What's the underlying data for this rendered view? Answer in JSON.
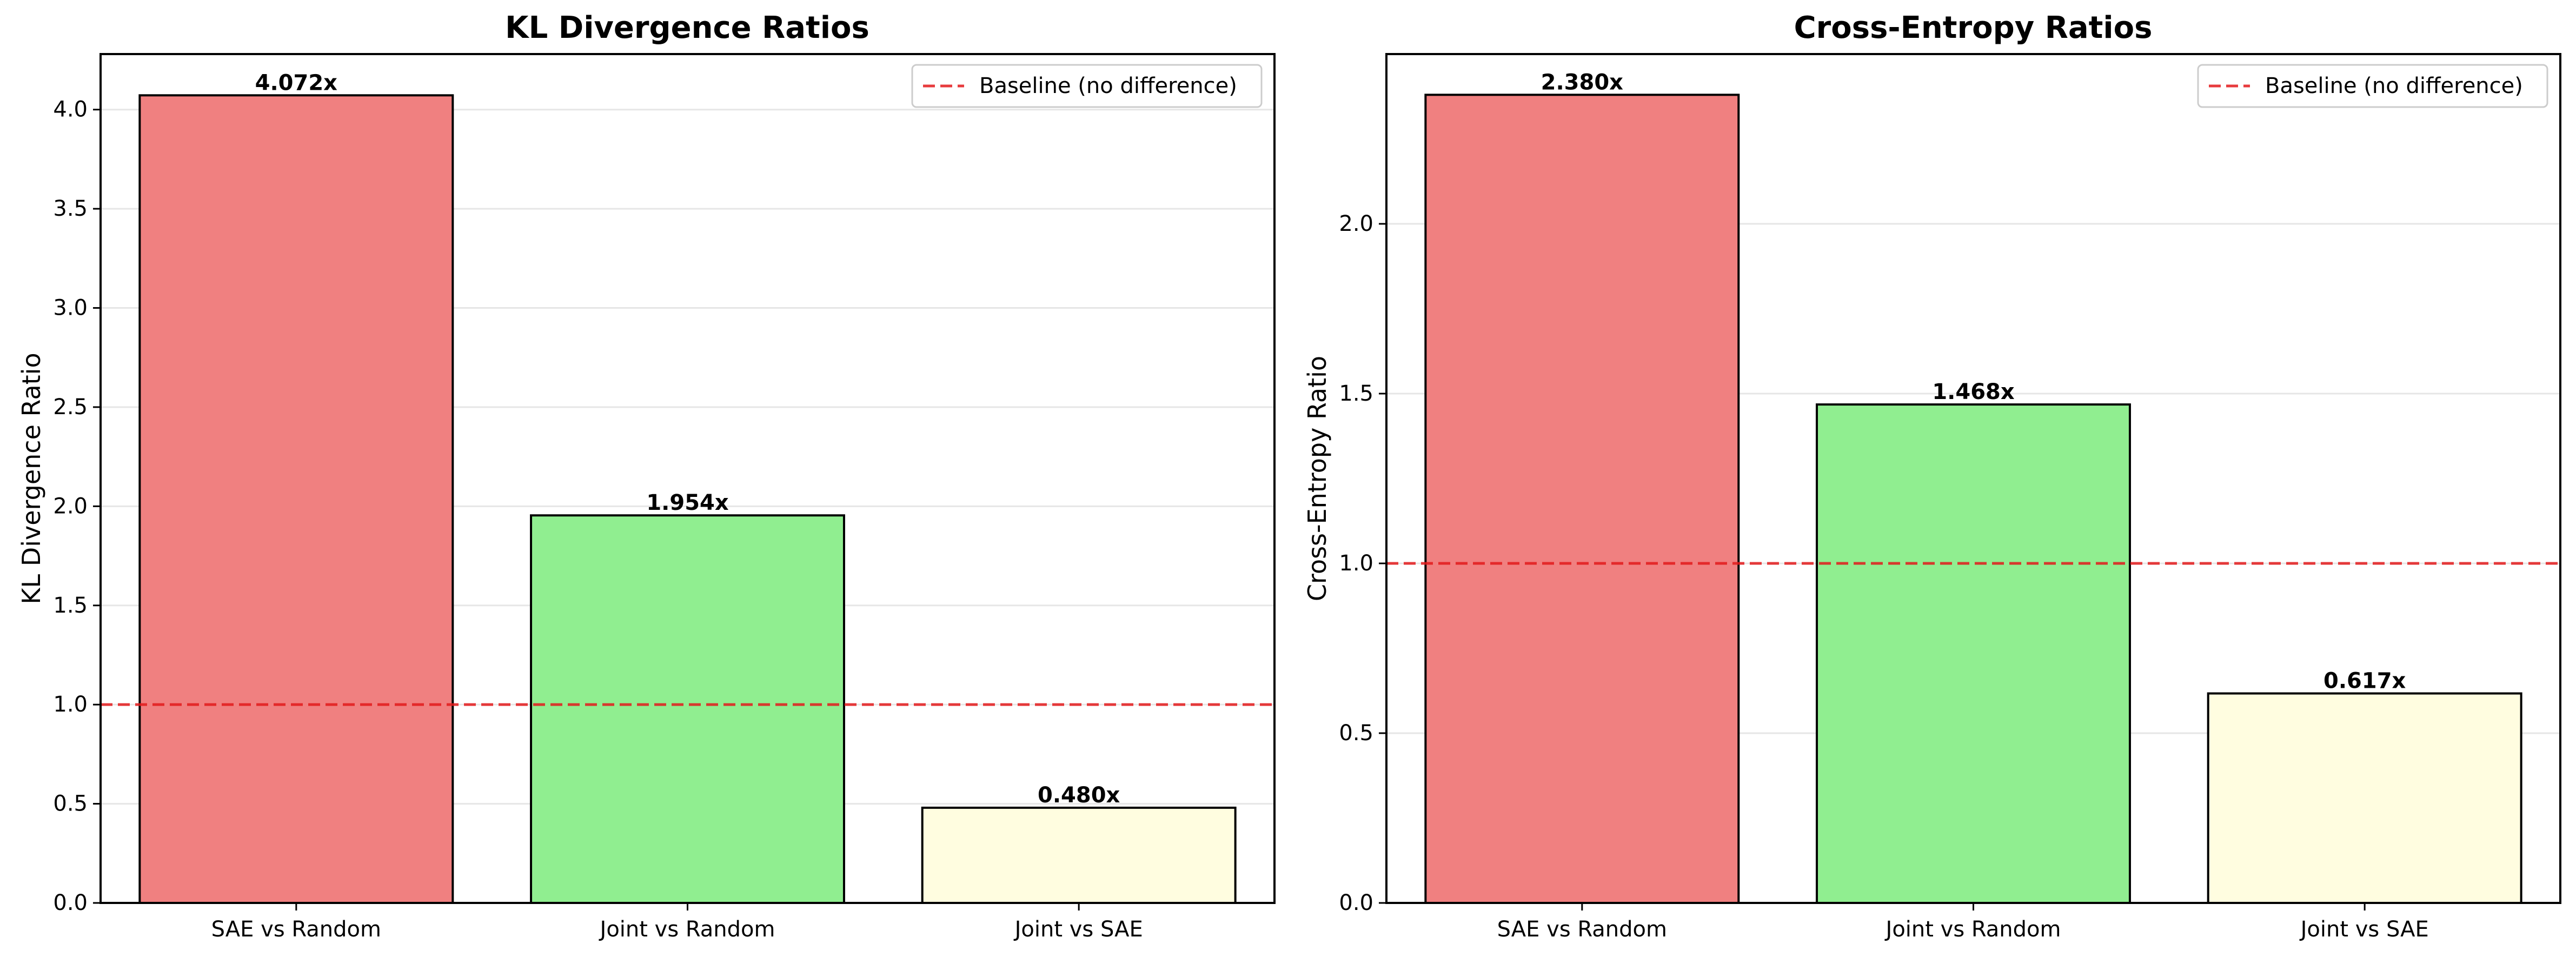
{
  "chart_data": [
    {
      "type": "bar",
      "title": "KL Divergence Ratios",
      "xlabel": "",
      "ylabel": "KL Divergence Ratio",
      "categories": [
        "SAE vs Random",
        "Joint vs Random",
        "Joint vs SAE"
      ],
      "values": [
        4.072,
        1.954,
        0.48
      ],
      "value_labels": [
        "4.072x",
        "1.954x",
        "0.480x"
      ],
      "bar_colors": [
        "#f08080",
        "#90ee90",
        "#fffde0"
      ],
      "ylim": [
        0,
        4.28
      ],
      "yticks": [
        0.0,
        0.5,
        1.0,
        1.5,
        2.0,
        2.5,
        3.0,
        3.5,
        4.0
      ],
      "ytick_labels": [
        "0.0",
        "0.5",
        "1.0",
        "1.5",
        "2.0",
        "2.5",
        "3.0",
        "3.5",
        "4.0"
      ],
      "baseline": 1.0,
      "baseline_label": "Baseline (no difference)",
      "baseline_color": "#e31a1c",
      "grid": "y",
      "legend_position": "top-right"
    },
    {
      "type": "bar",
      "title": "Cross-Entropy Ratios",
      "xlabel": "",
      "ylabel": "Cross-Entropy Ratio",
      "categories": [
        "SAE vs Random",
        "Joint vs Random",
        "Joint vs SAE"
      ],
      "values": [
        2.38,
        1.468,
        0.617
      ],
      "value_labels": [
        "2.380x",
        "1.468x",
        "0.617x"
      ],
      "bar_colors": [
        "#f08080",
        "#90ee90",
        "#fffde0"
      ],
      "ylim": [
        0,
        2.5
      ],
      "yticks": [
        0.0,
        0.5,
        1.0,
        1.5,
        2.0
      ],
      "ytick_labels": [
        "0.0",
        "0.5",
        "1.0",
        "1.5",
        "2.0"
      ],
      "baseline": 1.0,
      "baseline_label": "Baseline (no difference)",
      "baseline_color": "#e31a1c",
      "grid": "y",
      "legend_position": "top-right"
    }
  ]
}
